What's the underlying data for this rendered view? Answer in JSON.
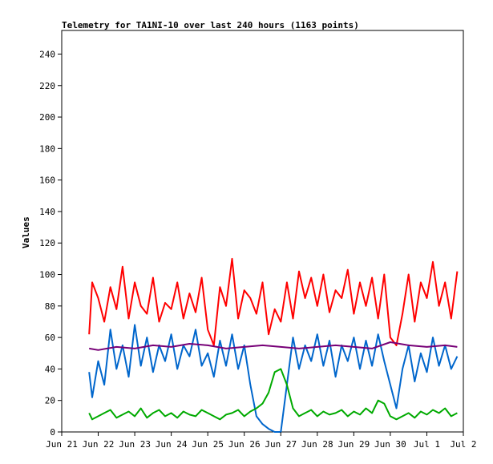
{
  "chart_data": {
    "type": "line",
    "title": "Telemetry for TA1NI-10 over last 240 hours (1163 points)",
    "xlabel": "",
    "ylabel": "Values",
    "ylim": [
      0,
      255
    ],
    "yticks": [
      0,
      20,
      40,
      60,
      80,
      100,
      120,
      140,
      160,
      180,
      200,
      220,
      240
    ],
    "xlim": [
      "Jun 21",
      "Jul 2"
    ],
    "xticks": [
      "Jun 21",
      "Jun 22",
      "Jun 23",
      "Jun 24",
      "Jun 25",
      "Jun 26",
      "Jun 27",
      "Jun 28",
      "Jun 29",
      "Jun 30",
      "Jul 1",
      "Jul 2"
    ],
    "grid": false,
    "legend": "none",
    "series": [
      {
        "color": "#ff0000",
        "x": [
          "Jun 21 18:00",
          "Jun 21 20:00",
          "Jun 22 00:00",
          "Jun 22 04:00",
          "Jun 22 08:00",
          "Jun 22 12:00",
          "Jun 22 16:00",
          "Jun 22 20:00",
          "Jun 23 00:00",
          "Jun 23 04:00",
          "Jun 23 08:00",
          "Jun 23 12:00",
          "Jun 23 16:00",
          "Jun 23 20:00",
          "Jun 24 00:00",
          "Jun 24 04:00",
          "Jun 24 08:00",
          "Jun 24 12:00",
          "Jun 24 16:00",
          "Jun 24 20:00",
          "Jun 25 00:00",
          "Jun 25 04:00",
          "Jun 25 08:00",
          "Jun 25 12:00",
          "Jun 25 16:00",
          "Jun 25 20:00",
          "Jun 26 00:00",
          "Jun 26 04:00",
          "Jun 26 08:00",
          "Jun 26 12:00",
          "Jun 26 16:00",
          "Jun 26 20:00",
          "Jun 27 00:00",
          "Jun 27 04:00",
          "Jun 27 08:00",
          "Jun 27 12:00",
          "Jun 27 16:00",
          "Jun 27 20:00",
          "Jun 28 00:00",
          "Jun 28 04:00",
          "Jun 28 08:00",
          "Jun 28 12:00",
          "Jun 28 16:00",
          "Jun 28 20:00",
          "Jun 29 00:00",
          "Jun 29 04:00",
          "Jun 29 08:00",
          "Jun 29 12:00",
          "Jun 29 16:00",
          "Jun 29 20:00",
          "Jun 30 00:00",
          "Jun 30 04:00",
          "Jun 30 08:00",
          "Jun 30 12:00",
          "Jun 30 16:00",
          "Jun 30 20:00",
          "Jul 1 00:00",
          "Jul 1 04:00",
          "Jul 1 08:00",
          "Jul 1 12:00",
          "Jul 1 16:00",
          "Jul 1 20:00"
        ],
        "values": [
          62,
          95,
          85,
          70,
          92,
          78,
          105,
          72,
          95,
          80,
          75,
          98,
          70,
          82,
          78,
          95,
          72,
          88,
          76,
          98,
          65,
          55,
          92,
          80,
          110,
          72,
          90,
          85,
          75,
          95,
          62,
          78,
          70,
          95,
          72,
          102,
          85,
          98,
          80,
          100,
          76,
          90,
          85,
          103,
          75,
          95,
          80,
          98,
          72,
          100,
          60,
          55,
          75,
          100,
          70,
          95,
          85,
          108,
          80,
          95,
          72,
          102
        ]
      },
      {
        "color": "#0066cc",
        "x": [
          "Jun 21 18:00",
          "Jun 21 20:00",
          "Jun 22 00:00",
          "Jun 22 04:00",
          "Jun 22 08:00",
          "Jun 22 12:00",
          "Jun 22 16:00",
          "Jun 22 20:00",
          "Jun 23 00:00",
          "Jun 23 04:00",
          "Jun 23 08:00",
          "Jun 23 12:00",
          "Jun 23 16:00",
          "Jun 23 20:00",
          "Jun 24 00:00",
          "Jun 24 04:00",
          "Jun 24 08:00",
          "Jun 24 12:00",
          "Jun 24 16:00",
          "Jun 24 20:00",
          "Jun 25 00:00",
          "Jun 25 04:00",
          "Jun 25 08:00",
          "Jun 25 12:00",
          "Jun 25 16:00",
          "Jun 25 20:00",
          "Jun 26 00:00",
          "Jun 26 04:00",
          "Jun 26 08:00",
          "Jun 26 12:00",
          "Jun 26 16:00",
          "Jun 26 20:00",
          "Jun 27 00:00",
          "Jun 27 04:00",
          "Jun 27 08:00",
          "Jun 27 12:00",
          "Jun 27 16:00",
          "Jun 27 20:00",
          "Jun 28 00:00",
          "Jun 28 04:00",
          "Jun 28 08:00",
          "Jun 28 12:00",
          "Jun 28 16:00",
          "Jun 28 20:00",
          "Jun 29 00:00",
          "Jun 29 04:00",
          "Jun 29 08:00",
          "Jun 29 12:00",
          "Jun 29 16:00",
          "Jun 29 20:00",
          "Jun 30 00:00",
          "Jun 30 04:00",
          "Jun 30 08:00",
          "Jun 30 12:00",
          "Jun 30 16:00",
          "Jun 30 20:00",
          "Jul 1 00:00",
          "Jul 1 04:00",
          "Jul 1 08:00",
          "Jul 1 12:00",
          "Jul 1 16:00",
          "Jul 1 20:00"
        ],
        "values": [
          38,
          22,
          45,
          30,
          65,
          40,
          55,
          35,
          68,
          42,
          60,
          38,
          55,
          45,
          62,
          40,
          55,
          48,
          65,
          42,
          50,
          35,
          58,
          42,
          62,
          40,
          55,
          30,
          10,
          5,
          2,
          0,
          0,
          30,
          60,
          40,
          55,
          45,
          62,
          42,
          58,
          35,
          55,
          45,
          60,
          40,
          58,
          42,
          62,
          45,
          30,
          15,
          40,
          55,
          32,
          50,
          38,
          60,
          42,
          55,
          40,
          48
        ]
      },
      {
        "color": "#00aa00",
        "x": [
          "Jun 21 18:00",
          "Jun 21 20:00",
          "Jun 22 00:00",
          "Jun 22 04:00",
          "Jun 22 08:00",
          "Jun 22 12:00",
          "Jun 22 16:00",
          "Jun 22 20:00",
          "Jun 23 00:00",
          "Jun 23 04:00",
          "Jun 23 08:00",
          "Jun 23 12:00",
          "Jun 23 16:00",
          "Jun 23 20:00",
          "Jun 24 00:00",
          "Jun 24 04:00",
          "Jun 24 08:00",
          "Jun 24 12:00",
          "Jun 24 16:00",
          "Jun 24 20:00",
          "Jun 25 00:00",
          "Jun 25 04:00",
          "Jun 25 08:00",
          "Jun 25 12:00",
          "Jun 25 16:00",
          "Jun 25 20:00",
          "Jun 26 00:00",
          "Jun 26 04:00",
          "Jun 26 08:00",
          "Jun 26 12:00",
          "Jun 26 16:00",
          "Jun 26 20:00",
          "Jun 27 00:00",
          "Jun 27 04:00",
          "Jun 27 08:00",
          "Jun 27 12:00",
          "Jun 27 16:00",
          "Jun 27 20:00",
          "Jun 28 00:00",
          "Jun 28 04:00",
          "Jun 28 08:00",
          "Jun 28 12:00",
          "Jun 28 16:00",
          "Jun 28 20:00",
          "Jun 29 00:00",
          "Jun 29 04:00",
          "Jun 29 08:00",
          "Jun 29 12:00",
          "Jun 29 16:00",
          "Jun 29 20:00",
          "Jun 30 00:00",
          "Jun 30 04:00",
          "Jun 30 08:00",
          "Jun 30 12:00",
          "Jun 30 16:00",
          "Jun 30 20:00",
          "Jul 1 00:00",
          "Jul 1 04:00",
          "Jul 1 08:00",
          "Jul 1 12:00",
          "Jul 1 16:00",
          "Jul 1 20:00"
        ],
        "values": [
          12,
          8,
          10,
          12,
          14,
          9,
          11,
          13,
          10,
          15,
          9,
          12,
          14,
          10,
          12,
          9,
          13,
          11,
          10,
          14,
          12,
          10,
          8,
          11,
          12,
          14,
          10,
          13,
          15,
          18,
          25,
          38,
          40,
          30,
          15,
          10,
          12,
          14,
          10,
          13,
          11,
          12,
          14,
          10,
          13,
          11,
          15,
          12,
          20,
          18,
          10,
          8,
          10,
          12,
          9,
          13,
          11,
          14,
          12,
          15,
          10,
          12
        ]
      },
      {
        "color": "#770077",
        "x": [
          "Jun 21 18:00",
          "Jun 22 00:00",
          "Jun 22 12:00",
          "Jun 23 00:00",
          "Jun 23 12:00",
          "Jun 24 00:00",
          "Jun 24 12:00",
          "Jun 25 00:00",
          "Jun 25 12:00",
          "Jun 26 00:00",
          "Jun 26 12:00",
          "Jun 27 00:00",
          "Jun 27 12:00",
          "Jun 28 00:00",
          "Jun 28 12:00",
          "Jun 29 00:00",
          "Jun 29 12:00",
          "Jun 30 00:00",
          "Jun 30 12:00",
          "Jul 1 00:00",
          "Jul 1 12:00",
          "Jul 1 20:00"
        ],
        "values": [
          53,
          52,
          54,
          53,
          55,
          54,
          56,
          55,
          53,
          54,
          55,
          54,
          53,
          54,
          55,
          54,
          53,
          57,
          55,
          54,
          55,
          54
        ]
      }
    ]
  }
}
